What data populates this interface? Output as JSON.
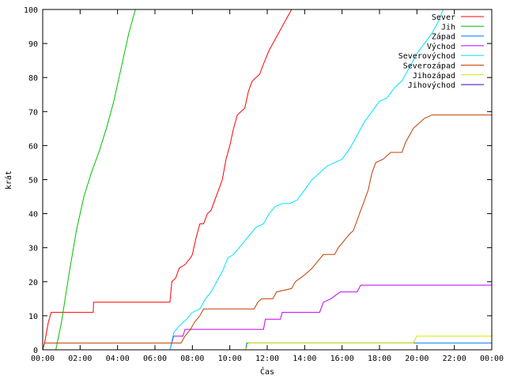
{
  "chart_data": {
    "type": "line",
    "xlabel": "Čas",
    "ylabel": "krát",
    "xlim": [
      0,
      24
    ],
    "ylim": [
      0,
      100
    ],
    "x_ticks": [
      {
        "value": 0,
        "label": "00:00"
      },
      {
        "value": 2,
        "label": "02:00"
      },
      {
        "value": 4,
        "label": "04:00"
      },
      {
        "value": 6,
        "label": "06:00"
      },
      {
        "value": 8,
        "label": "08:00"
      },
      {
        "value": 10,
        "label": "10:00"
      },
      {
        "value": 12,
        "label": "12:00"
      },
      {
        "value": 14,
        "label": "14:00"
      },
      {
        "value": 16,
        "label": "16:00"
      },
      {
        "value": 18,
        "label": "18:00"
      },
      {
        "value": 20,
        "label": "20:00"
      },
      {
        "value": 22,
        "label": "22:00"
      },
      {
        "value": 24,
        "label": "00:00"
      }
    ],
    "y_ticks": [
      0,
      10,
      20,
      30,
      40,
      50,
      60,
      70,
      80,
      90,
      100
    ],
    "legend_position": "top-right",
    "grid": false,
    "series": [
      {
        "name": "Sever",
        "color": "#ff0000",
        "points": [
          [
            0,
            0
          ],
          [
            0.1,
            2
          ],
          [
            0.3,
            8
          ],
          [
            0.45,
            11
          ],
          [
            2.7,
            11
          ],
          [
            2.72,
            14
          ],
          [
            6.8,
            14
          ],
          [
            6.9,
            20
          ],
          [
            7.1,
            21
          ],
          [
            7.3,
            24
          ],
          [
            7.6,
            25
          ],
          [
            7.9,
            27
          ],
          [
            8.0,
            28
          ],
          [
            8.2,
            33
          ],
          [
            8.4,
            37
          ],
          [
            8.6,
            37
          ],
          [
            8.8,
            40
          ],
          [
            9.0,
            41
          ],
          [
            9.2,
            44
          ],
          [
            9.4,
            47
          ],
          [
            9.6,
            50
          ],
          [
            9.8,
            56
          ],
          [
            10.0,
            60
          ],
          [
            10.2,
            65
          ],
          [
            10.4,
            69
          ],
          [
            10.6,
            70
          ],
          [
            10.8,
            71
          ],
          [
            11.0,
            76
          ],
          [
            11.2,
            79
          ],
          [
            11.4,
            80
          ],
          [
            11.6,
            81
          ],
          [
            11.8,
            84
          ],
          [
            12.1,
            88
          ],
          [
            12.4,
            91
          ],
          [
            12.7,
            94
          ],
          [
            13.0,
            97
          ],
          [
            13.3,
            100
          ]
        ]
      },
      {
        "name": "Jih",
        "color": "#00c000",
        "points": [
          [
            0.7,
            0
          ],
          [
            1.0,
            8
          ],
          [
            1.4,
            22
          ],
          [
            1.8,
            35
          ],
          [
            2.2,
            45
          ],
          [
            2.6,
            52
          ],
          [
            3.0,
            58
          ],
          [
            3.4,
            65
          ],
          [
            3.8,
            73
          ],
          [
            4.2,
            83
          ],
          [
            4.6,
            93
          ],
          [
            4.95,
            100
          ]
        ]
      },
      {
        "name": "Západ",
        "color": "#0080ff",
        "points": [
          [
            0,
            0
          ],
          [
            10.85,
            0
          ],
          [
            10.9,
            2
          ],
          [
            24,
            2
          ]
        ]
      },
      {
        "name": "Východ",
        "color": "#c000ff",
        "points": [
          [
            0,
            0
          ],
          [
            6.8,
            0
          ],
          [
            7.0,
            4
          ],
          [
            7.5,
            4
          ],
          [
            7.6,
            6
          ],
          [
            11.8,
            6
          ],
          [
            11.9,
            9
          ],
          [
            12.7,
            9
          ],
          [
            12.8,
            11
          ],
          [
            14.8,
            11
          ],
          [
            15.0,
            14
          ],
          [
            15.4,
            15
          ],
          [
            15.9,
            17
          ],
          [
            16.8,
            17
          ],
          [
            17.0,
            19
          ],
          [
            24,
            19
          ]
        ]
      },
      {
        "name": "Severovýchod",
        "color": "#00e0ff",
        "points": [
          [
            0,
            0
          ],
          [
            6.8,
            0
          ],
          [
            7.0,
            5
          ],
          [
            7.3,
            7
          ],
          [
            7.7,
            9
          ],
          [
            8.0,
            11
          ],
          [
            8.4,
            12
          ],
          [
            8.7,
            15
          ],
          [
            9.0,
            17
          ],
          [
            9.3,
            20
          ],
          [
            9.6,
            23
          ],
          [
            9.9,
            27
          ],
          [
            10.2,
            28
          ],
          [
            10.5,
            30
          ],
          [
            10.8,
            32
          ],
          [
            11.1,
            34
          ],
          [
            11.4,
            36
          ],
          [
            11.8,
            37
          ],
          [
            12.1,
            40
          ],
          [
            12.4,
            42
          ],
          [
            12.8,
            43
          ],
          [
            13.2,
            43
          ],
          [
            13.6,
            44
          ],
          [
            14.0,
            47
          ],
          [
            14.4,
            50
          ],
          [
            14.8,
            52
          ],
          [
            15.2,
            54
          ],
          [
            15.6,
            55
          ],
          [
            16.0,
            56
          ],
          [
            16.4,
            59
          ],
          [
            16.8,
            63
          ],
          [
            17.2,
            67
          ],
          [
            17.6,
            70
          ],
          [
            18.0,
            73
          ],
          [
            18.4,
            74
          ],
          [
            18.8,
            77
          ],
          [
            19.2,
            79
          ],
          [
            19.6,
            83
          ],
          [
            20.0,
            87
          ],
          [
            20.4,
            90
          ],
          [
            20.8,
            93
          ],
          [
            21.1,
            96
          ],
          [
            21.4,
            100
          ]
        ]
      },
      {
        "name": "Severozápad",
        "color": "#c04000",
        "points": [
          [
            0,
            0
          ],
          [
            0.1,
            2
          ],
          [
            7.4,
            2
          ],
          [
            7.6,
            4
          ],
          [
            7.9,
            6
          ],
          [
            8.1,
            8
          ],
          [
            8.4,
            10
          ],
          [
            8.6,
            12
          ],
          [
            11.3,
            12
          ],
          [
            11.5,
            14
          ],
          [
            11.7,
            15
          ],
          [
            12.3,
            15
          ],
          [
            12.5,
            17
          ],
          [
            13.3,
            18
          ],
          [
            13.5,
            20
          ],
          [
            14.0,
            22
          ],
          [
            14.4,
            24
          ],
          [
            14.7,
            26
          ],
          [
            15.0,
            28
          ],
          [
            15.6,
            28
          ],
          [
            15.8,
            30
          ],
          [
            16.1,
            32
          ],
          [
            16.4,
            34
          ],
          [
            16.6,
            35
          ],
          [
            16.8,
            38
          ],
          [
            17.0,
            41
          ],
          [
            17.2,
            44
          ],
          [
            17.4,
            47
          ],
          [
            17.6,
            52
          ],
          [
            17.8,
            55
          ],
          [
            18.2,
            56
          ],
          [
            18.6,
            58
          ],
          [
            19.2,
            58
          ],
          [
            19.4,
            61
          ],
          [
            19.6,
            63
          ],
          [
            19.8,
            65
          ],
          [
            20.0,
            66
          ],
          [
            20.4,
            68
          ],
          [
            20.8,
            69
          ],
          [
            24,
            69
          ]
        ]
      },
      {
        "name": "Jihozápad",
        "color": "#e0e000",
        "points": [
          [
            0,
            0
          ],
          [
            10.85,
            0
          ],
          [
            11.0,
            2
          ],
          [
            19.8,
            2
          ],
          [
            20.0,
            4
          ],
          [
            24,
            4
          ]
        ]
      },
      {
        "name": "Jihovýchod",
        "color": "#4000c0",
        "points": [
          [
            0,
            0
          ],
          [
            24,
            0
          ]
        ]
      }
    ]
  }
}
